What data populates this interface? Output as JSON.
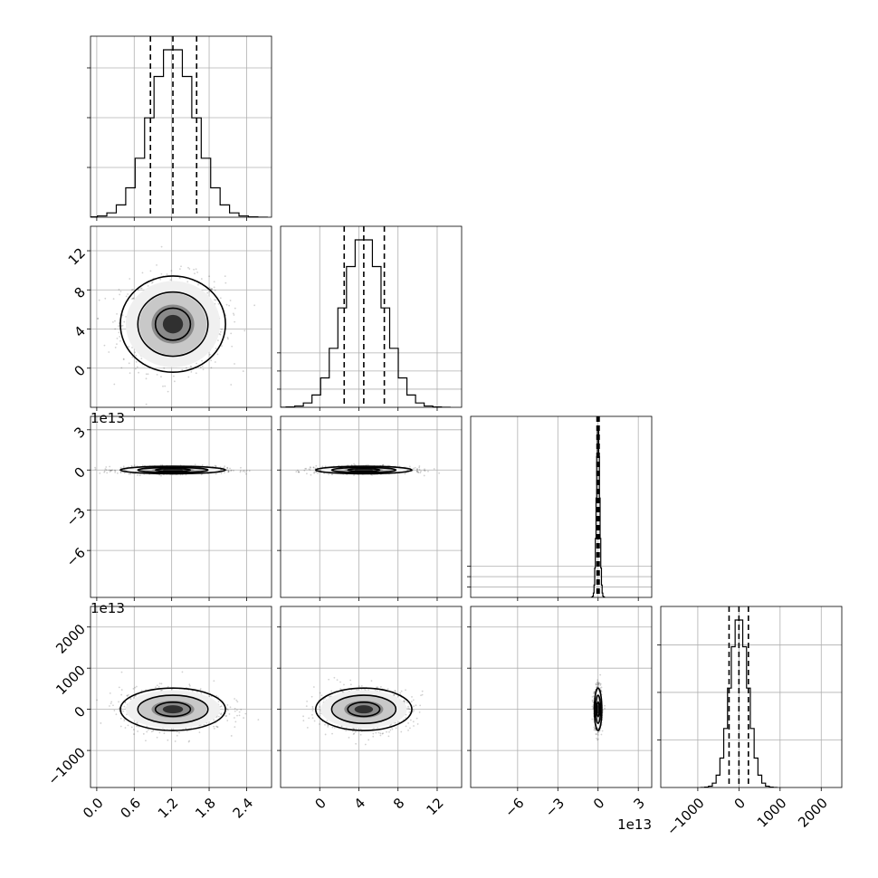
{
  "chart_data": {
    "type": "corner",
    "variables": [
      {
        "name": "",
        "offset": "",
        "range": [
          -0.1,
          2.8
        ],
        "ticks": [
          0.0,
          0.6,
          1.2,
          1.8,
          2.4
        ],
        "tick_labels": [
          "0.0",
          "0.6",
          "1.2",
          "1.8",
          "2.4"
        ],
        "hist_ticks": [
          0.32,
          0.64,
          0.96
        ],
        "mean": 1.22,
        "sd": 0.36,
        "quantiles": [
          0.86,
          1.22,
          1.6
        ]
      },
      {
        "name": "",
        "offset": "1e13",
        "range": [
          -4,
          14.5
        ],
        "ticks": [
          0,
          4,
          8,
          12
        ],
        "tick_labels": [
          "0",
          "4",
          "8",
          "12"
        ],
        "hist_ticks": [
          0.02,
          0.04,
          0.06
        ],
        "mean": 4.5,
        "sd": 2.1,
        "quantiles": [
          2.5,
          4.5,
          6.6
        ]
      },
      {
        "name": "",
        "offset": "1e13",
        "range": [
          -9.5,
          4.0
        ],
        "ticks": [
          -6,
          -3,
          0,
          3
        ],
        "tick_labels": [
          "−6",
          "−3",
          "0",
          "3"
        ],
        "hist_ticks": [
          0.2,
          0.4,
          0.6
        ],
        "mean": 0.0,
        "sd": 0.12,
        "quantiles": [
          -0.08,
          0.0,
          0.08
        ]
      },
      {
        "name": "",
        "offset": "",
        "range": [
          -1900,
          2500
        ],
        "ticks": [
          -1000,
          0,
          1000,
          2000
        ],
        "tick_labels": [
          "−1000",
          "0",
          "1000",
          "2000"
        ],
        "hist_ticks": [
          0.0005,
          0.001,
          0.0015
        ],
        "mean": 0,
        "sd": 220,
        "quantiles": [
          -240,
          0,
          230
        ]
      }
    ],
    "grid": true,
    "contour_sigmas": [
      0.6,
      1.2,
      1.8
    ],
    "scatter_points_per_panel": 900
  }
}
